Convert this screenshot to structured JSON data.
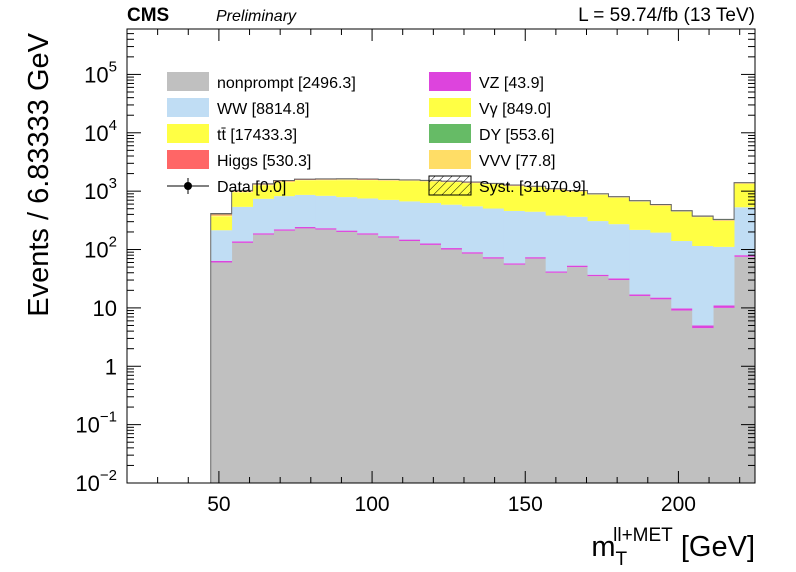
{
  "header": {
    "cms": "CMS",
    "preliminary": "Preliminary",
    "lumi": "L = 59.74/fb (13 TeV)"
  },
  "chart_data": {
    "type": "bar",
    "stacked": true,
    "yscale": "log",
    "ylabel": "Events / 6.83333 GeV",
    "xlabel_main": "m",
    "xlabel_sub": "T",
    "xlabel_sup": "ll+MET",
    "xlabel_unit": " [GeV]",
    "xlim": [
      20,
      225
    ],
    "ylim": [
      0.01,
      600000
    ],
    "x_ticks": [
      50,
      100,
      150,
      200
    ],
    "y_ticks": [
      {
        "value": 0.01,
        "base": "10",
        "exp": "−2"
      },
      {
        "value": 0.1,
        "base": "10",
        "exp": "−1"
      },
      {
        "value": 1,
        "base": "1",
        "exp": ""
      },
      {
        "value": 10,
        "base": "10",
        "exp": ""
      },
      {
        "value": 100,
        "base": "10",
        "exp": "2"
      },
      {
        "value": 1000,
        "base": "10",
        "exp": "3"
      },
      {
        "value": 10000,
        "base": "10",
        "exp": "4"
      },
      {
        "value": 100000,
        "base": "10",
        "exp": "5"
      }
    ],
    "bin_edges": [
      20,
      26.8333,
      33.6667,
      40.5,
      47.3333,
      54.1667,
      61,
      67.8333,
      74.6667,
      81.5,
      88.3333,
      95.1667,
      102,
      108.8333,
      115.6667,
      122.5,
      129.3333,
      136.1667,
      143,
      149.8333,
      156.6667,
      163.5,
      170.3333,
      177.1667,
      184,
      190.8333,
      197.6667,
      204.5,
      211.3333,
      218.1667,
      225
    ],
    "series": [
      {
        "name": "nonprompt",
        "values": [
          0,
          0,
          0,
          0,
          60,
          130,
          180,
          210,
          230,
          220,
          200,
          180,
          160,
          140,
          120,
          100,
          85,
          70,
          55,
          70,
          40,
          50,
          35,
          30,
          16,
          14,
          9,
          4.5,
          10,
          75
        ]
      },
      {
        "name": "VZ",
        "values": [
          0,
          0,
          0,
          0,
          4,
          8,
          10,
          12,
          13,
          12,
          11,
          10,
          9,
          8,
          7,
          6,
          5,
          4,
          3,
          4,
          2,
          3,
          2,
          2,
          1,
          1,
          0.8,
          0.5,
          1,
          5
        ]
      },
      {
        "name": "WW",
        "values": [
          0,
          0,
          0,
          0,
          150,
          400,
          550,
          600,
          620,
          600,
          580,
          560,
          540,
          520,
          500,
          480,
          460,
          430,
          400,
          370,
          340,
          310,
          270,
          240,
          200,
          180,
          130,
          110,
          100,
          450
        ]
      },
      {
        "name": "ttbar",
        "values": [
          0,
          0,
          0,
          0,
          150,
          400,
          500,
          600,
          650,
          700,
          750,
          780,
          800,
          820,
          830,
          830,
          820,
          800,
          760,
          720,
          680,
          620,
          560,
          500,
          440,
          370,
          300,
          240,
          200,
          800
        ]
      },
      {
        "name": "Vgamma",
        "values": [
          0,
          0,
          0,
          0,
          20,
          40,
          45,
          45,
          40,
          38,
          36,
          34,
          32,
          30,
          28,
          26,
          24,
          22,
          20,
          18,
          16,
          14,
          12,
          10,
          9,
          8,
          7,
          6,
          5,
          25
        ]
      },
      {
        "name": "Higgs",
        "values": [
          0,
          0,
          0,
          0,
          15,
          25,
          25,
          25,
          25,
          24,
          24,
          22,
          21,
          20,
          18,
          17,
          16,
          15,
          14,
          12,
          11,
          10,
          9,
          8,
          7,
          6,
          5,
          4,
          4,
          20
        ]
      },
      {
        "name": "DY",
        "values": [
          0,
          0,
          0,
          0,
          15,
          25,
          28,
          28,
          27,
          26,
          25,
          24,
          23,
          22,
          21,
          20,
          19,
          18,
          17,
          16,
          15,
          14,
          13,
          12,
          11,
          10,
          9,
          8,
          7,
          20
        ]
      },
      {
        "name": "VVV",
        "values": [
          0,
          0,
          0,
          0,
          1,
          2,
          3,
          3,
          3,
          3,
          3,
          3,
          3,
          3,
          3,
          3,
          3,
          3,
          3,
          3,
          3,
          3,
          3,
          3,
          3,
          3,
          3,
          2,
          2,
          5
        ]
      }
    ],
    "colors": {
      "nonprompt": "#c0c0c0",
      "VZ": "#dd44dd",
      "WW": "#c0ddf4",
      "ttbar": "#ffff44",
      "Vgamma": "#ffff66",
      "Higgs": "#ff6666",
      "DY": "#66bb66",
      "VVV": "#ffdd66"
    },
    "legend": {
      "placement": "top",
      "entries": [
        {
          "label": "nonprompt [2496.3]",
          "color": "#c0c0c0",
          "kind": "box"
        },
        {
          "label": "VZ [43.9]",
          "color": "#dd44dd",
          "kind": "box"
        },
        {
          "label": "WW [8814.8]",
          "color": "#c0ddf4",
          "kind": "box"
        },
        {
          "label": "Vγ [849.0]",
          "color": "#ffff44",
          "kind": "box"
        },
        {
          "label": "tt̄ [17433.3]",
          "color": "#ffff44",
          "kind": "box"
        },
        {
          "label": "DY [553.6]",
          "color": "#66bb66",
          "kind": "box"
        },
        {
          "label": "Higgs [530.3]",
          "color": "#ff6666",
          "kind": "box"
        },
        {
          "label": "VVV [77.8]",
          "color": "#ffdd66",
          "kind": "box"
        },
        {
          "label": "Data [0.0]",
          "color": "#000000",
          "kind": "marker"
        },
        {
          "label": "Syst. [31070.9]",
          "color": "#000000",
          "kind": "hatch"
        }
      ]
    }
  }
}
